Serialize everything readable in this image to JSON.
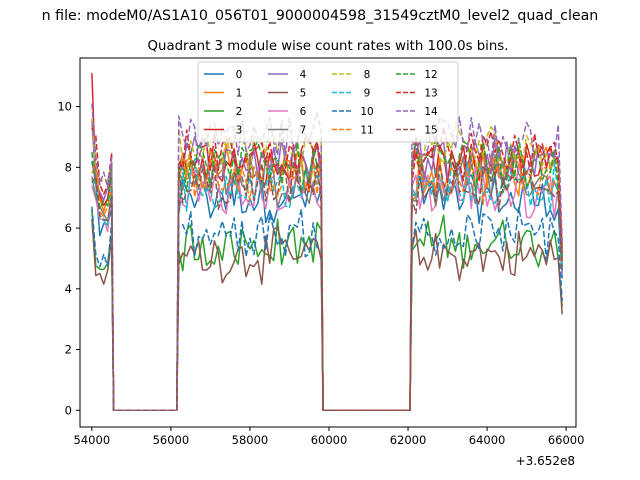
{
  "chart_data": {
    "type": "line",
    "suptitle": "n file: modeM0/AS1A10_056T01_9000004598_31549cztM0_level2_quad_clean",
    "title": "Quadrant 3 module wise count rates with 100.0s bins.",
    "xlabel": "",
    "ylabel": "",
    "x_offset_text": "+3.652e8",
    "xlim": [
      53700,
      66250
    ],
    "ylim": [
      -0.55,
      11.6
    ],
    "xticks": [
      54000,
      56000,
      58000,
      60000,
      62000,
      64000,
      66000
    ],
    "xtick_labels": [
      "54000",
      "56000",
      "58000",
      "60000",
      "62000",
      "64000",
      "66000"
    ],
    "yticks": [
      0,
      2,
      4,
      6,
      8,
      10
    ],
    "ytick_labels": [
      "0",
      "2",
      "4",
      "6",
      "8",
      "10"
    ],
    "bin_width": 100,
    "x_start": 54000,
    "x_end": 65900,
    "gaps": [
      [
        54500,
        56200
      ],
      [
        59800,
        62100
      ]
    ],
    "legend": {
      "placement": "upper center",
      "columns": 4
    },
    "series": [
      {
        "name": "0",
        "color": "#1f77b4",
        "dash": "solid",
        "level": 7.0,
        "peak": 8.2
      },
      {
        "name": "1",
        "color": "#ff7f0e",
        "dash": "solid",
        "level": 7.9,
        "peak": 7.8
      },
      {
        "name": "2",
        "color": "#2ca02c",
        "dash": "solid",
        "level": 5.5,
        "peak": 6.6
      },
      {
        "name": "3",
        "color": "#d62728",
        "dash": "solid",
        "level": 8.0,
        "peak": 11.1
      },
      {
        "name": "4",
        "color": "#9467bd",
        "dash": "solid",
        "level": 8.3,
        "peak": 9.5
      },
      {
        "name": "5",
        "color": "#8c564b",
        "dash": "solid",
        "level": 5.1,
        "peak": 6.3
      },
      {
        "name": "6",
        "color": "#e377c2",
        "dash": "solid",
        "level": 7.2,
        "peak": 7.4
      },
      {
        "name": "7",
        "color": "#7f7f7f",
        "dash": "solid",
        "level": 7.6,
        "peak": 7.7
      },
      {
        "name": "8",
        "color": "#bcbd22",
        "dash": "dashed",
        "level": 8.6,
        "peak": 9.6
      },
      {
        "name": "9",
        "color": "#17becf",
        "dash": "dashed",
        "level": 7.4,
        "peak": 7.6
      },
      {
        "name": "10",
        "color": "#1f77b4",
        "dash": "dashed",
        "level": 5.8,
        "peak": 6.7
      },
      {
        "name": "11",
        "color": "#ff7f0e",
        "dash": "dashed",
        "level": 7.7,
        "peak": 8.0
      },
      {
        "name": "12",
        "color": "#2ca02c",
        "dash": "dashed",
        "level": 8.1,
        "peak": 8.5
      },
      {
        "name": "13",
        "color": "#d62728",
        "dash": "dashed",
        "level": 8.4,
        "peak": 9.3
      },
      {
        "name": "14",
        "color": "#9467bd",
        "dash": "dashed",
        "level": 8.9,
        "peak": 10.1
      },
      {
        "name": "15",
        "color": "#8c564b",
        "dash": "dashed",
        "level": 7.3,
        "peak": 7.5
      }
    ]
  }
}
